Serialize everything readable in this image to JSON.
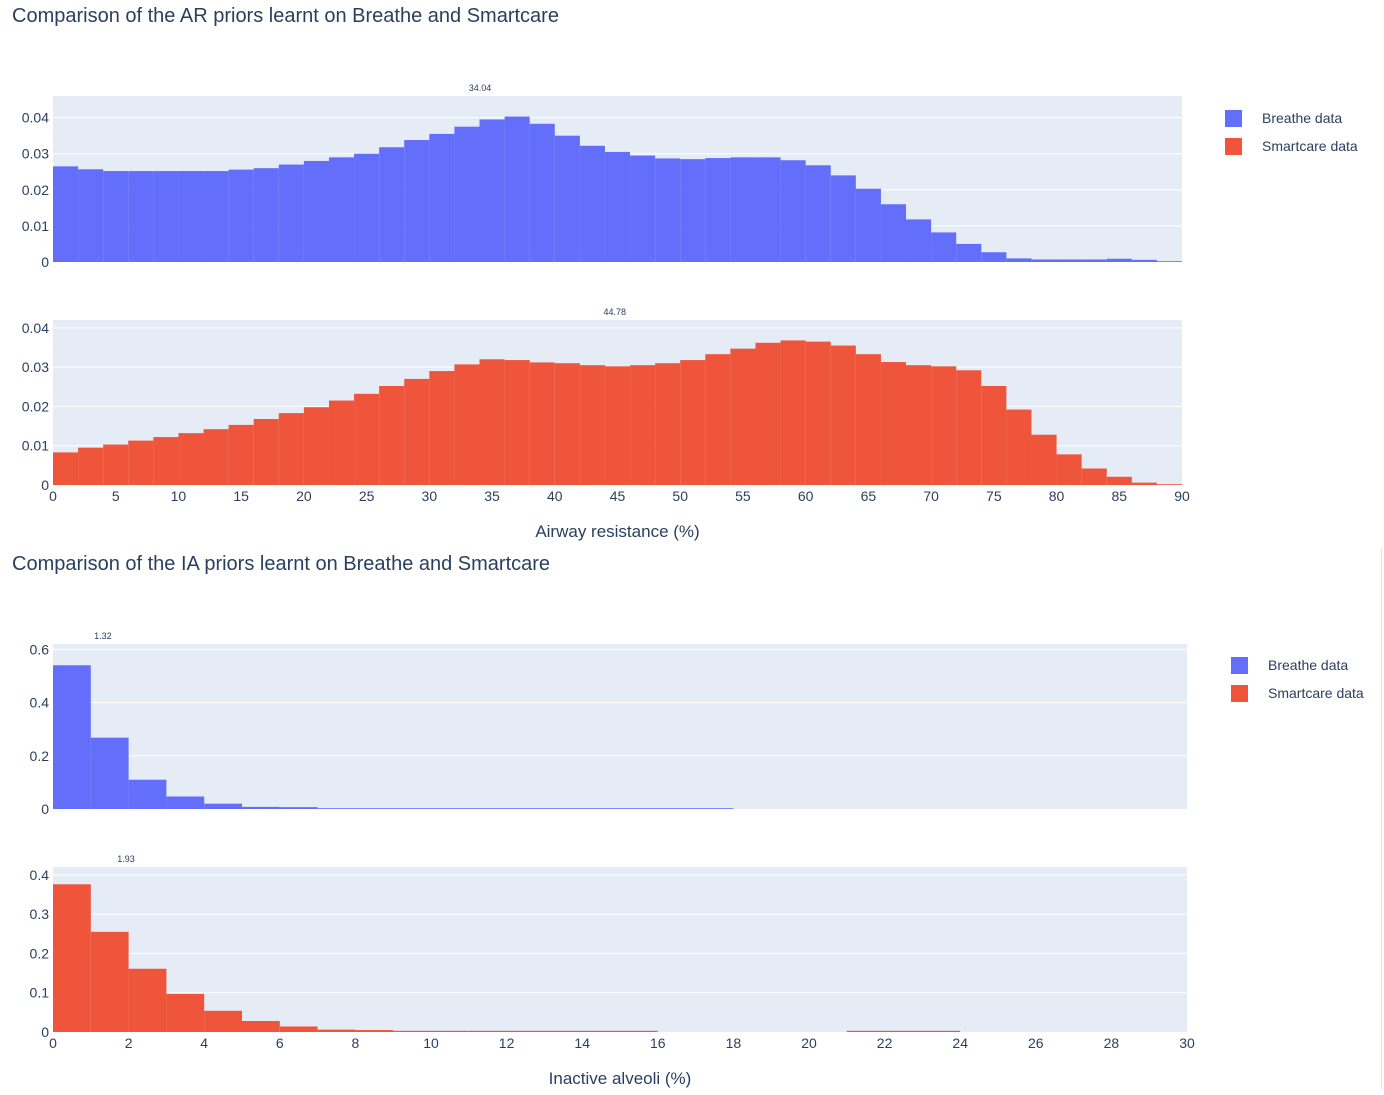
{
  "figures": [
    {
      "title": "Comparison of the AR priors learnt on Breathe and Smartcare",
      "legend": [
        {
          "label": "Breathe data",
          "color": "#636efa"
        },
        {
          "label": "Smartcare data",
          "color": "#ef553b"
        }
      ],
      "xlabel": "Airway resistance (%)"
    },
    {
      "title": "Comparison of the IA priors learnt on Breathe and Smartcare",
      "legend": [
        {
          "label": "Breathe data",
          "color": "#636efa"
        },
        {
          "label": "Smartcare data",
          "color": "#ef553b"
        }
      ],
      "xlabel": "Inactive alveoli (%)"
    }
  ],
  "chart_data": [
    {
      "type": "bar",
      "title": "Comparison of the AR priors learnt on Breathe and Smartcare",
      "xlabel": "Airway resistance (%)",
      "ylabel": "",
      "xlim": [
        0,
        90
      ],
      "xticks": [
        "0",
        "5",
        "10",
        "15",
        "20",
        "25",
        "30",
        "35",
        "40",
        "45",
        "50",
        "55",
        "60",
        "65",
        "70",
        "75",
        "80",
        "85",
        "90"
      ],
      "bin_start": 0,
      "bin_width": 2,
      "legend_position": "top-right",
      "grid": true,
      "series": [
        {
          "name": "Breathe data",
          "color": "#636efa",
          "ylim": [
            0,
            0.046
          ],
          "yticks": [
            "0",
            "0.01",
            "0.02",
            "0.03",
            "0.04"
          ],
          "mean_label": "34.04",
          "mean_x": 34.04,
          "values": [
            0.0265,
            0.0257,
            0.0252,
            0.0252,
            0.0252,
            0.0252,
            0.0252,
            0.0256,
            0.026,
            0.027,
            0.028,
            0.029,
            0.03,
            0.0318,
            0.0338,
            0.0355,
            0.0375,
            0.0395,
            0.0403,
            0.0383,
            0.035,
            0.0322,
            0.0305,
            0.0295,
            0.0287,
            0.0285,
            0.0288,
            0.029,
            0.029,
            0.0282,
            0.0268,
            0.024,
            0.0203,
            0.016,
            0.0118,
            0.0082,
            0.005,
            0.0027,
            0.001,
            0.0007,
            0.0007,
            0.0007,
            0.0009,
            0.0006,
            0.0002
          ]
        },
        {
          "name": "Smartcare data",
          "color": "#ef553b",
          "ylim": [
            0,
            0.042
          ],
          "yticks": [
            "0",
            "0.01",
            "0.02",
            "0.03",
            "0.04"
          ],
          "mean_label": "44.78",
          "mean_x": 44.78,
          "values": [
            0.0083,
            0.0095,
            0.0103,
            0.0113,
            0.0122,
            0.0132,
            0.0142,
            0.0153,
            0.0168,
            0.0183,
            0.0198,
            0.0215,
            0.0232,
            0.0252,
            0.027,
            0.029,
            0.0307,
            0.032,
            0.0318,
            0.0312,
            0.031,
            0.0305,
            0.0302,
            0.0305,
            0.031,
            0.0318,
            0.0333,
            0.0347,
            0.0362,
            0.0368,
            0.0365,
            0.0355,
            0.0333,
            0.0313,
            0.0305,
            0.0302,
            0.0292,
            0.0252,
            0.0192,
            0.0128,
            0.0078,
            0.0042,
            0.0021,
            0.0006,
            0.0002
          ]
        }
      ]
    },
    {
      "type": "bar",
      "title": "Comparison of the IA priors learnt on Breathe and Smartcare",
      "xlabel": "Inactive alveoli (%)",
      "ylabel": "",
      "xlim": [
        0,
        30
      ],
      "xticks": [
        "0",
        "2",
        "4",
        "6",
        "8",
        "10",
        "12",
        "14",
        "16",
        "18",
        "20",
        "22",
        "24",
        "26",
        "28",
        "30"
      ],
      "bin_start": 0,
      "bin_width": 1,
      "legend_position": "top-right",
      "grid": true,
      "series": [
        {
          "name": "Breathe data",
          "color": "#636efa",
          "ylim": [
            0,
            0.62
          ],
          "yticks": [
            "0",
            "0.2",
            "0.4",
            "0.6"
          ],
          "mean_label": "1.32",
          "mean_x": 1.32,
          "values": [
            0.54,
            0.268,
            0.11,
            0.047,
            0.02,
            0.008,
            0.007,
            0.002,
            0.002,
            0.002,
            0.002,
            0.002,
            0.002,
            0.002,
            0.002,
            0.002,
            0.002,
            0.002
          ]
        },
        {
          "name": "Smartcare data",
          "color": "#ef553b",
          "ylim": [
            0,
            0.42
          ],
          "yticks": [
            "0",
            "0.1",
            "0.2",
            "0.3",
            "0.4"
          ],
          "mean_label": "1.93",
          "mean_x": 1.93,
          "values": [
            0.376,
            0.255,
            0.161,
            0.097,
            0.054,
            0.028,
            0.014,
            0.006,
            0.005,
            0.003,
            0.003,
            0.003,
            0.003,
            0.003,
            0.003,
            0.003,
            0,
            0,
            0,
            0,
            0,
            0.003,
            0.003,
            0.003
          ]
        }
      ]
    }
  ]
}
